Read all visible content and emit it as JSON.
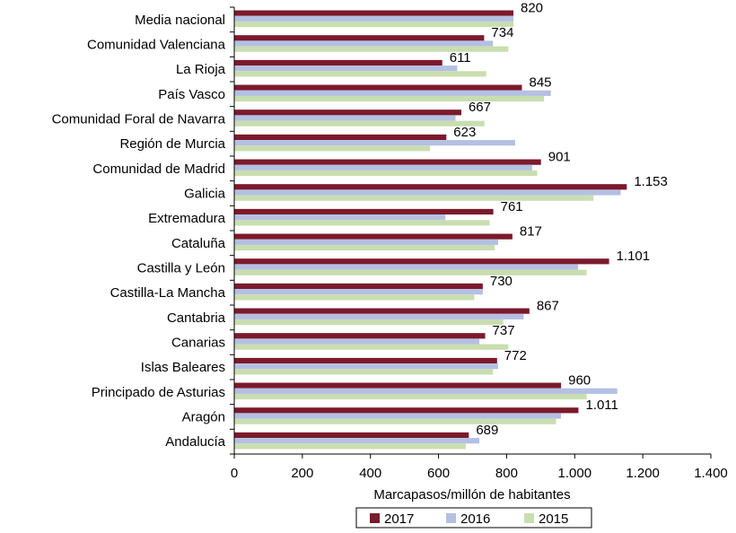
{
  "chart_data": {
    "type": "bar",
    "orientation": "horizontal",
    "categories": [
      "Media nacional",
      "Comunidad Valenciana",
      "La Rioja",
      "País Vasco",
      "Comunidad Foral de Navarra",
      "Región de Murcia",
      "Comunidad de Madrid",
      "Galicia",
      "Extremadura",
      "Cataluña",
      "Castilla y León",
      "Castilla-La Mancha",
      "Cantabria",
      "Canarias",
      "Islas Baleares",
      "Principado de Asturias",
      "Aragón",
      "Andalucía"
    ],
    "series": [
      {
        "name": "2017",
        "color": "#7b1a2c",
        "values": [
          820,
          734,
          611,
          845,
          667,
          623,
          901,
          1153,
          761,
          817,
          1101,
          730,
          867,
          737,
          772,
          960,
          1011,
          689
        ]
      },
      {
        "name": "2016",
        "color": "#b4c0e2",
        "values": [
          820,
          760,
          655,
          930,
          650,
          825,
          875,
          1135,
          620,
          775,
          1010,
          730,
          850,
          720,
          775,
          1125,
          960,
          720
        ]
      },
      {
        "name": "2015",
        "color": "#c9deb0",
        "values": [
          820,
          805,
          740,
          910,
          735,
          575,
          890,
          1055,
          750,
          765,
          1035,
          705,
          790,
          805,
          760,
          1035,
          945,
          680
        ]
      }
    ],
    "data_labels": [
      "820",
      "734",
      "611",
      "845",
      "667",
      "623",
      "901",
      "1.153",
      "761",
      "817",
      "1.101",
      "730",
      "867",
      "737",
      "772",
      "960",
      "1.011",
      "689"
    ],
    "x_ticks": [
      "0",
      "200",
      "400",
      "600",
      "800",
      "1.000",
      "1.200",
      "1.400"
    ],
    "xlim": [
      0,
      1400
    ],
    "xlabel": "Marcapasos/millón de habitantes",
    "legend_position": "bottom",
    "grid": false
  }
}
